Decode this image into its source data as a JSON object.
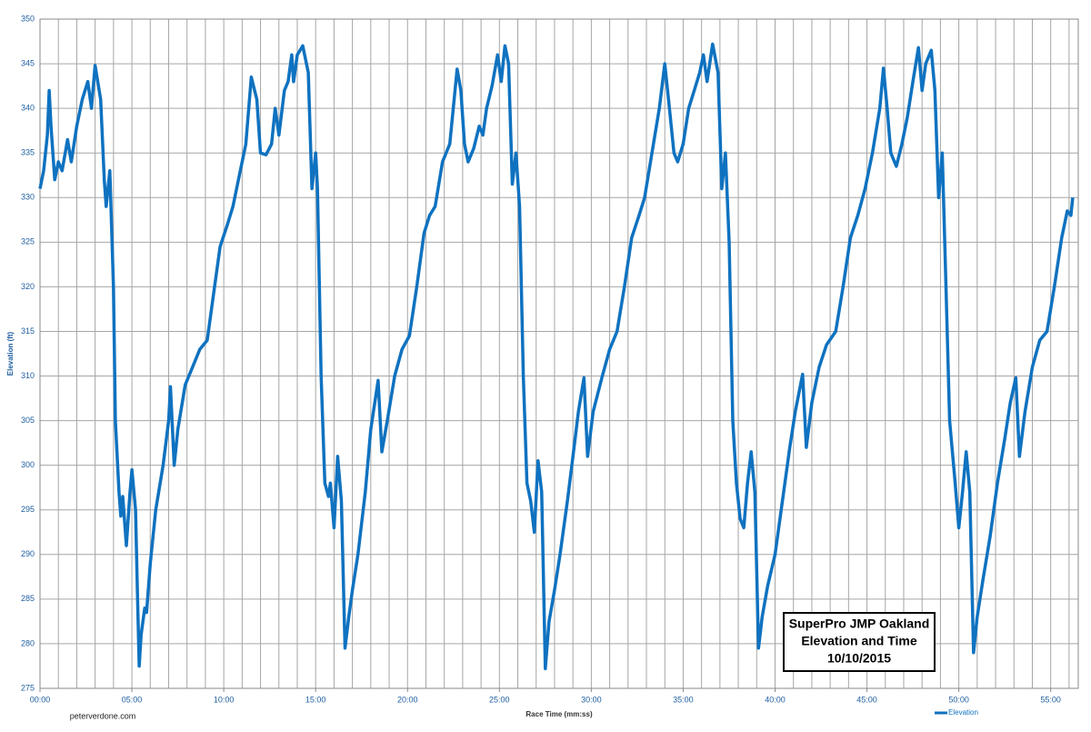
{
  "chart_data": {
    "type": "line",
    "x_label": "Race Time (mm:ss)",
    "y_label": "Elevation (ft)",
    "credit": "peterverdone.com",
    "annotation": [
      "SuperPro JMP Oakland",
      "Elevation and Time",
      "10/10/2015"
    ],
    "legend": "bottom-right",
    "grid": true,
    "xlim": [
      0,
      56.5
    ],
    "ylim": [
      275,
      350
    ],
    "xticks": [
      {
        "value": 0,
        "label": "00:00"
      },
      {
        "value": 5,
        "label": "05:00"
      },
      {
        "value": 10,
        "label": "10:00"
      },
      {
        "value": 15,
        "label": "15:00"
      },
      {
        "value": 20,
        "label": "20:00"
      },
      {
        "value": 25,
        "label": "25:00"
      },
      {
        "value": 30,
        "label": "30:00"
      },
      {
        "value": 35,
        "label": "35:00"
      },
      {
        "value": 40,
        "label": "40:00"
      },
      {
        "value": 45,
        "label": "45:00"
      },
      {
        "value": 50,
        "label": "50:00"
      },
      {
        "value": 55,
        "label": "55:00"
      }
    ],
    "xminorticks": [
      0,
      1,
      2,
      3,
      4,
      5,
      6,
      7,
      8,
      9,
      10,
      11,
      12,
      13,
      14,
      15,
      16,
      17,
      18,
      19,
      20,
      21,
      22,
      23,
      24,
      25,
      26,
      27,
      28,
      29,
      30,
      31,
      32,
      33,
      34,
      35,
      36,
      37,
      38,
      39,
      40,
      41,
      42,
      43,
      44,
      45,
      46,
      47,
      48,
      49,
      50,
      51,
      52,
      53,
      54,
      55,
      56
    ],
    "yticks": [
      275,
      280,
      285,
      290,
      295,
      300,
      305,
      310,
      315,
      320,
      325,
      330,
      335,
      340,
      345,
      350
    ],
    "series": [
      {
        "name": "Elevation",
        "color": "#0f72c0",
        "x": [
          0,
          0.2,
          0.4,
          0.5,
          0.6,
          0.8,
          1.0,
          1.2,
          1.5,
          1.7,
          2.0,
          2.3,
          2.6,
          2.8,
          3.0,
          3.3,
          3.5,
          3.6,
          3.8,
          4.0,
          4.1,
          4.3,
          4.4,
          4.5,
          4.7,
          4.9,
          5.0,
          5.2,
          5.3,
          5.4,
          5.5,
          5.7,
          5.8,
          6.0,
          6.3,
          6.7,
          7.0,
          7.1,
          7.3,
          7.5,
          7.9,
          8.3,
          8.7,
          9.1,
          9.5,
          9.8,
          10.2,
          10.5,
          10.9,
          11.2,
          11.5,
          11.8,
          12.0,
          12.3,
          12.6,
          12.8,
          13.0,
          13.3,
          13.5,
          13.7,
          13.8,
          14.0,
          14.3,
          14.6,
          14.8,
          15.0,
          15.1,
          15.3,
          15.5,
          15.7,
          15.8,
          16.0,
          16.2,
          16.4,
          16.6,
          16.8,
          17.0,
          17.3,
          17.7,
          18.0,
          18.4,
          18.6,
          18.9,
          19.3,
          19.7,
          20.1,
          20.5,
          20.9,
          21.2,
          21.5,
          21.9,
          22.3,
          22.7,
          22.9,
          23.1,
          23.3,
          23.6,
          23.9,
          24.1,
          24.3,
          24.6,
          24.9,
          25.1,
          25.3,
          25.5,
          25.7,
          25.9,
          26.1,
          26.3,
          26.5,
          26.7,
          26.9,
          27.1,
          27.3,
          27.5,
          27.7,
          28.0,
          28.3,
          28.7,
          29.0,
          29.3,
          29.6,
          29.8,
          30.1,
          30.6,
          31.0,
          31.4,
          31.8,
          32.2,
          32.6,
          32.9,
          33.3,
          33.7,
          34.0,
          34.2,
          34.5,
          34.7,
          35.0,
          35.3,
          35.6,
          35.9,
          36.1,
          36.3,
          36.6,
          36.9,
          37.1,
          37.3,
          37.5,
          37.7,
          37.9,
          38.1,
          38.3,
          38.5,
          38.7,
          38.9,
          39.1,
          39.3,
          39.6,
          40.0,
          40.4,
          40.8,
          41.1,
          41.5,
          41.7,
          42.0,
          42.4,
          42.8,
          43.3,
          43.7,
          44.1,
          44.5,
          44.9,
          45.3,
          45.7,
          45.9,
          46.1,
          46.3,
          46.6,
          46.9,
          47.2,
          47.5,
          47.8,
          48.0,
          48.2,
          48.5,
          48.7,
          48.9,
          49.1,
          49.3,
          49.5,
          49.8,
          50.0,
          50.2,
          50.4,
          50.6,
          50.8,
          51.0,
          51.3,
          51.7,
          52.1,
          52.5,
          52.8,
          53.1,
          53.3,
          53.6,
          54.0,
          54.4,
          54.8,
          55.2,
          55.6,
          55.9,
          56.1,
          56.2
        ],
        "values": [
          331,
          333,
          337,
          342,
          338,
          332,
          334,
          333,
          336.5,
          334,
          338,
          341,
          343,
          340,
          344.8,
          341,
          332,
          329,
          333,
          320,
          305,
          297,
          294.3,
          296.5,
          291,
          297,
          299.5,
          295,
          286,
          277.5,
          281,
          284,
          283.5,
          289,
          295,
          300,
          305,
          308.8,
          300,
          304,
          309,
          311,
          313,
          314,
          320,
          324.5,
          327,
          329,
          333,
          336,
          343.5,
          341,
          335,
          334.8,
          336,
          340,
          337,
          342,
          343,
          346,
          343,
          346,
          347,
          344,
          331,
          335,
          331,
          310,
          298,
          296.5,
          298,
          293,
          301,
          296,
          279.5,
          283,
          286,
          290,
          297,
          304,
          309.5,
          301.5,
          305,
          310,
          313,
          314.5,
          320,
          326,
          328,
          329,
          334,
          336,
          344.4,
          342,
          336,
          334,
          335.5,
          338,
          337,
          340,
          342.5,
          346,
          343,
          347,
          345,
          331.5,
          335,
          329,
          310,
          298,
          296,
          292.5,
          300.5,
          297,
          277.2,
          282.5,
          286,
          290,
          296,
          301,
          306,
          309.8,
          301,
          306,
          310,
          313,
          315,
          320,
          325.5,
          328,
          330,
          335,
          340,
          345,
          341,
          335,
          334,
          336,
          340,
          342,
          344,
          346,
          343,
          347.2,
          344,
          331,
          335,
          325,
          305,
          298,
          294,
          293,
          298,
          301.5,
          297,
          279.5,
          283,
          286.5,
          290,
          296,
          302,
          306,
          310.2,
          302,
          307,
          311,
          313.5,
          315,
          320,
          325.5,
          328,
          331,
          335,
          340,
          344.5,
          340,
          335,
          333.5,
          336,
          339,
          343,
          346.8,
          342,
          345,
          346.5,
          342,
          330,
          335,
          320,
          305,
          298,
          293,
          297,
          301.5,
          297,
          279,
          283,
          287,
          292,
          298,
          303,
          307,
          309.8,
          301,
          306,
          311,
          314,
          315,
          320,
          325.5,
          328.5,
          328,
          330
        ]
      }
    ]
  }
}
